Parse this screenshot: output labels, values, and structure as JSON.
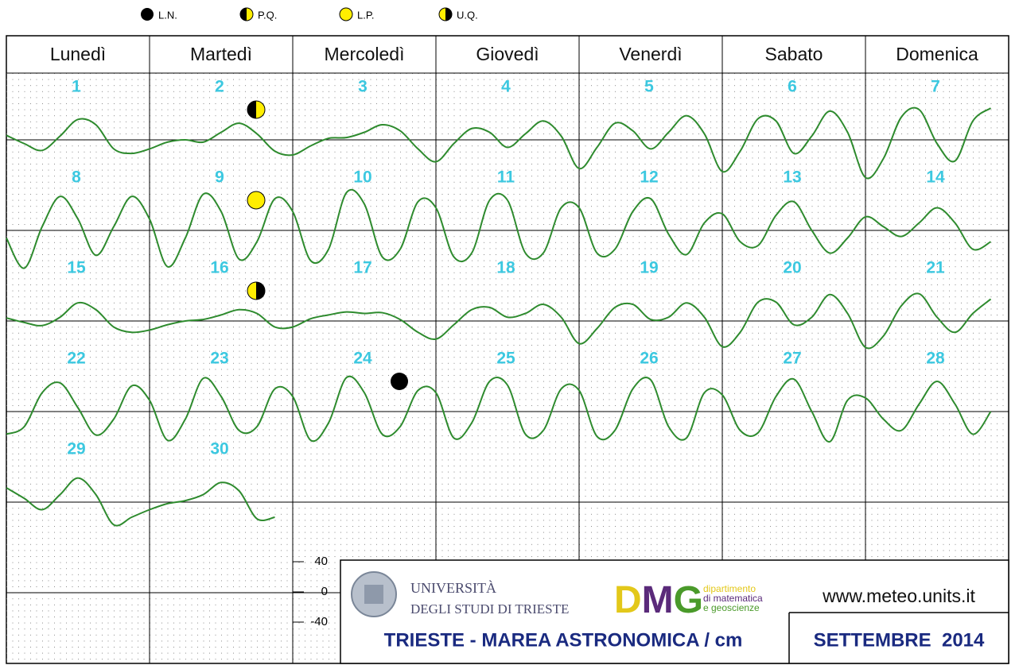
{
  "chart_data": {
    "type": "tide-calendar",
    "title": "TRIESTE - MAREA ASTRONOMICA / cm",
    "month": "SETTEMBRE  2014",
    "website": "www.meteo.units.it",
    "university": [
      "UNIVERSITÀ",
      "DEGLI STUDI DI TRIESTE"
    ],
    "logo_letters": [
      "D",
      "M",
      "G"
    ],
    "department": [
      "dipartimento",
      "di matematica",
      "e geoscienze"
    ],
    "weekdays": [
      "Lunedì",
      "Martedì",
      "Mercoledì",
      "Giovedì",
      "Venerdì",
      "Sabato",
      "Domenica"
    ],
    "color": "#2e8b2e",
    "ylim": [
      -40,
      40
    ],
    "yticks": [
      40,
      0,
      -40
    ],
    "moon_legend": [
      {
        "label": "L.N.",
        "icon": "new"
      },
      {
        "label": "P.Q.",
        "icon": "first"
      },
      {
        "label": "L.P.",
        "icon": "full"
      },
      {
        "label": "U.Q.",
        "icon": "last"
      }
    ],
    "moon_phases": [
      {
        "icon": "first",
        "date": 2
      },
      {
        "icon": "full",
        "date": 9
      },
      {
        "icon": "last",
        "date": 16
      },
      {
        "icon": "new",
        "date": 24
      }
    ],
    "weeks": [
      {
        "days": [
          "1",
          "2",
          "3",
          "4",
          "5",
          "6",
          "7"
        ],
        "tide": [
          6,
          -5,
          -14,
          5,
          27,
          20,
          -12,
          -18,
          -12,
          -3,
          0,
          -3,
          10,
          22,
          8,
          -15,
          -20,
          -8,
          2,
          3,
          10,
          20,
          12,
          -12,
          -29,
          -5,
          15,
          10,
          -10,
          8,
          25,
          5,
          -38,
          -10,
          22,
          12,
          -12,
          10,
          32,
          8,
          -42,
          -15,
          28,
          25,
          -18,
          5,
          38,
          10,
          -50,
          -25,
          30,
          40,
          -5,
          -28,
          25,
          42
        ]
      },
      {
        "days": [
          "8",
          "9",
          "10",
          "11",
          "12",
          "13",
          "14"
        ],
        "tide": [
          -10,
          -50,
          5,
          45,
          15,
          -33,
          5,
          45,
          15,
          -48,
          -10,
          48,
          25,
          -38,
          -15,
          42,
          25,
          -40,
          -25,
          50,
          35,
          -35,
          -25,
          38,
          30,
          -35,
          -30,
          40,
          40,
          -30,
          -30,
          30,
          30,
          -30,
          -25,
          25,
          42,
          -5,
          -32,
          10,
          22,
          -15,
          -20,
          20,
          38,
          0,
          -30,
          -10,
          18,
          5,
          -8,
          10,
          30,
          10,
          -25,
          -15
        ]
      },
      {
        "days": [
          "15",
          "16",
          "17",
          "18",
          "19",
          "20",
          "21"
        ],
        "tide": [
          4,
          -2,
          -6,
          5,
          24,
          15,
          -8,
          -15,
          -12,
          -5,
          0,
          2,
          8,
          15,
          10,
          -8,
          -8,
          3,
          8,
          12,
          10,
          11,
          2,
          -15,
          -24,
          -5,
          15,
          18,
          5,
          10,
          22,
          5,
          -30,
          -10,
          18,
          22,
          2,
          5,
          24,
          5,
          -34,
          -15,
          25,
          25,
          -5,
          5,
          35,
          10,
          -35,
          -20,
          20,
          36,
          5,
          -15,
          10,
          29
        ]
      },
      {
        "days": [
          "22",
          "23",
          "24",
          "25",
          "26",
          "27",
          "28"
        ],
        "tide": [
          -30,
          -20,
          25,
          38,
          5,
          -31,
          -10,
          34,
          15,
          -38,
          -10,
          44,
          20,
          -25,
          -20,
          30,
          20,
          -38,
          -15,
          45,
          25,
          -30,
          -20,
          28,
          25,
          -35,
          -15,
          40,
          35,
          -30,
          -25,
          30,
          28,
          -33,
          -25,
          30,
          42,
          -20,
          -35,
          25,
          22,
          -25,
          -28,
          20,
          43,
          0,
          -40,
          15,
          18,
          -10,
          -25,
          10,
          40,
          10,
          -30,
          0
        ]
      },
      {
        "days": [
          "29",
          "30"
        ],
        "tide": [
          19,
          5,
          -10,
          10,
          32,
          10,
          -30,
          -20,
          -10,
          -2,
          2,
          10,
          26,
          15,
          -22,
          -20
        ]
      }
    ]
  }
}
